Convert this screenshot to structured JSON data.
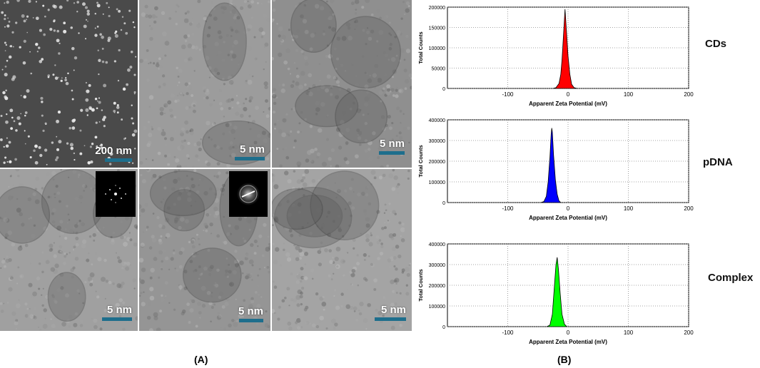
{
  "panel_labels": {
    "a": "(A)",
    "b": "(B)"
  },
  "micrographs": [
    {
      "id": "sem",
      "scale": "200 nm",
      "tone": "dark"
    },
    {
      "id": "tem1",
      "scale": "5 nm",
      "tone": "light"
    },
    {
      "id": "tem2",
      "scale": "5 nm",
      "tone": "mid"
    },
    {
      "id": "tem3",
      "scale": "5 nm",
      "tone": "light",
      "inset": "fft-pattern"
    },
    {
      "id": "tem4",
      "scale": "5 nm",
      "tone": "mid",
      "inset": "fft-pattern"
    },
    {
      "id": "tem5",
      "scale": "5 nm",
      "tone": "light"
    }
  ],
  "chart_data": [
    {
      "type": "area",
      "sample": "CDs",
      "xlabel": "Apparent Zeta Potential (mV)",
      "ylabel": "Total Counts",
      "xlim": [
        -200,
        200
      ],
      "ylim": [
        0,
        200000
      ],
      "x_ticks": [
        "-100",
        "0",
        "100",
        "200"
      ],
      "y_ticks": [
        "0",
        "50000",
        "100000",
        "150000",
        "200000"
      ],
      "grid": true,
      "color": "#ff0000",
      "peak": {
        "x": -5,
        "y": 195000
      },
      "x": [
        -25,
        -20,
        -15,
        -12,
        -10,
        -8,
        -6,
        -5,
        -3,
        0,
        3,
        6,
        10,
        15
      ],
      "y": [
        0,
        2000,
        12000,
        35000,
        70000,
        120000,
        170000,
        195000,
        150000,
        80000,
        35000,
        10000,
        2000,
        0
      ]
    },
    {
      "type": "area",
      "sample": "pDNA",
      "xlabel": "Apparent Zeta Potential (mV)",
      "ylabel": "Total Counts",
      "xlim": [
        -200,
        200
      ],
      "ylim": [
        0,
        400000
      ],
      "x_ticks": [
        "-100",
        "0",
        "100",
        "200"
      ],
      "y_ticks": [
        "0",
        "100000",
        "200000",
        "300000",
        "400000"
      ],
      "grid": true,
      "color": "#0000ff",
      "peak": {
        "x": -27,
        "y": 360000
      },
      "x": [
        -45,
        -40,
        -36,
        -33,
        -30,
        -28,
        -27,
        -26,
        -24,
        -21,
        -18,
        -15,
        -12
      ],
      "y": [
        0,
        5000,
        30000,
        100000,
        220000,
        330000,
        360000,
        340000,
        230000,
        110000,
        40000,
        8000,
        0
      ]
    },
    {
      "type": "area",
      "sample": "Complex",
      "xlabel": "Apparent Zeta Potential (mV)",
      "ylabel": "Total Counts",
      "xlim": [
        -200,
        200
      ],
      "ylim": [
        0,
        400000
      ],
      "x_ticks": [
        "-100",
        "0",
        "100",
        "200"
      ],
      "y_ticks": [
        "0",
        "100000",
        "200000",
        "300000",
        "400000"
      ],
      "grid": true,
      "color": "#00ff00",
      "peak": {
        "x": -18,
        "y": 335000
      },
      "x": [
        -35,
        -30,
        -26,
        -23,
        -20,
        -18,
        -16,
        -13,
        -10,
        -6,
        -2
      ],
      "y": [
        0,
        8000,
        60000,
        180000,
        300000,
        335000,
        280000,
        160000,
        60000,
        12000,
        0
      ]
    }
  ]
}
